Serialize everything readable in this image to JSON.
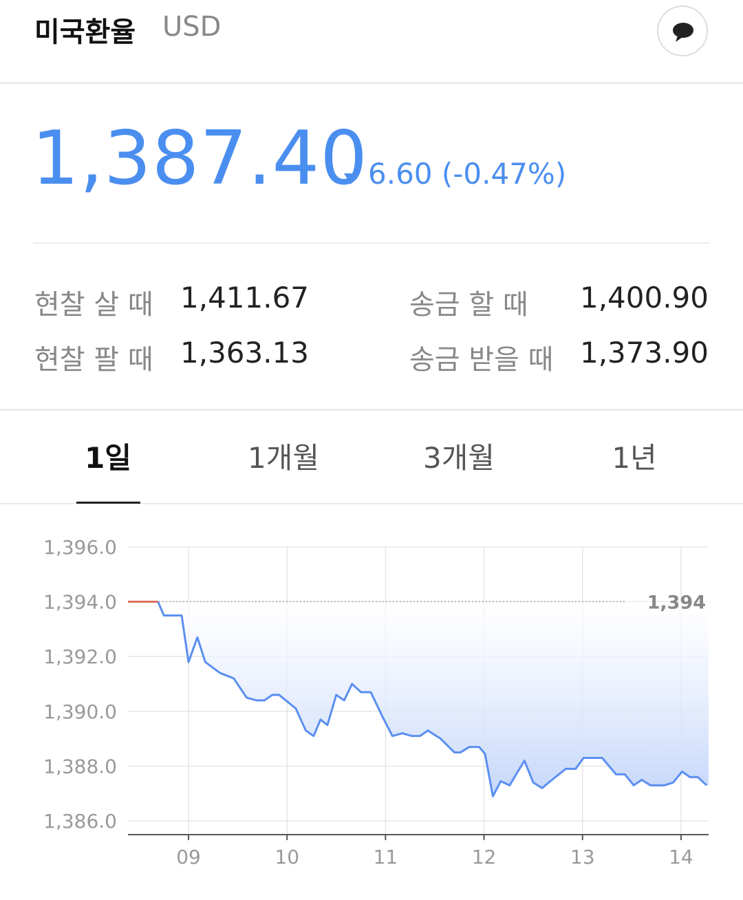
{
  "header": {
    "title": "미국환율",
    "currency": "USD"
  },
  "price": {
    "value": "1,387.40",
    "change": "6.60 (-0.47%)"
  },
  "rates": [
    [
      {
        "label": "현찰 살 때",
        "value": "1,411.67"
      },
      {
        "label": "송금 할 때",
        "value": "1,400.90"
      }
    ],
    [
      {
        "label": "현찰 팔 때",
        "value": "1,363.13"
      },
      {
        "label": "송금 받을 때",
        "value": "1,373.90"
      }
    ]
  ],
  "tabs": [
    "1일",
    "1개월",
    "3개월",
    "1년"
  ],
  "chart_data": {
    "type": "line",
    "xlim": [
      8.385,
      14.28
    ],
    "xticks": [
      {
        "value": 9,
        "label": "09"
      },
      {
        "value": 10,
        "label": "10"
      },
      {
        "value": 11,
        "label": "11"
      },
      {
        "value": 12,
        "label": "12"
      },
      {
        "value": 13,
        "label": "13"
      },
      {
        "value": 14,
        "label": "14"
      }
    ],
    "ylim": [
      1385.5,
      1396.5
    ],
    "yticks": [
      {
        "value": 1386,
        "label": "1,386.0"
      },
      {
        "value": 1388,
        "label": "1,388.0"
      },
      {
        "value": 1390,
        "label": "1,390.0"
      },
      {
        "value": 1392,
        "label": "1,392.0"
      },
      {
        "value": 1394,
        "label": "1,394.0"
      },
      {
        "value": 1396,
        "label": "1,396.0"
      }
    ],
    "grid": true,
    "reference": {
      "value": 1394,
      "label": "1,394"
    },
    "series": [
      {
        "color": "#e0705a",
        "x": [
          8.385,
          8.69
        ],
        "values": [
          1394,
          1394
        ]
      },
      {
        "color": "#5b8ff0",
        "fill": true,
        "x": [
          8.69,
          8.75,
          8.93,
          9.0,
          9.09,
          9.17,
          9.32,
          9.46,
          9.59,
          9.69,
          9.77,
          9.85,
          9.92,
          10.09,
          10.19,
          10.27,
          10.34,
          10.41,
          10.5,
          10.58,
          10.66,
          10.75,
          10.85,
          10.97,
          11.07,
          11.17,
          11.27,
          11.35,
          11.43,
          11.56,
          11.7,
          11.76,
          11.85,
          11.95,
          12.01,
          12.09,
          12.17,
          12.26,
          12.41,
          12.5,
          12.59,
          12.69,
          12.83,
          12.93,
          13.01,
          13.2,
          13.34,
          13.43,
          13.52,
          13.6,
          13.69,
          13.83,
          13.92,
          14.01,
          14.09,
          14.17,
          14.26
        ],
        "values": [
          1394,
          1393.5,
          1393.5,
          1391.8,
          1392.7,
          1391.8,
          1391.4,
          1391.2,
          1390.5,
          1390.4,
          1390.4,
          1390.6,
          1390.6,
          1390.1,
          1389.3,
          1389.1,
          1389.7,
          1389.5,
          1390.6,
          1390.4,
          1391.0,
          1390.7,
          1390.7,
          1389.8,
          1389.1,
          1389.2,
          1389.1,
          1389.1,
          1389.3,
          1389.0,
          1388.5,
          1388.5,
          1388.7,
          1388.7,
          1388.45,
          1386.9,
          1387.45,
          1387.3,
          1388.2,
          1387.4,
          1387.2,
          1387.5,
          1387.9,
          1387.9,
          1388.3,
          1388.3,
          1387.7,
          1387.7,
          1387.3,
          1387.5,
          1387.3,
          1387.3,
          1387.4,
          1387.8,
          1387.6,
          1387.6,
          1387.3
        ]
      }
    ]
  }
}
